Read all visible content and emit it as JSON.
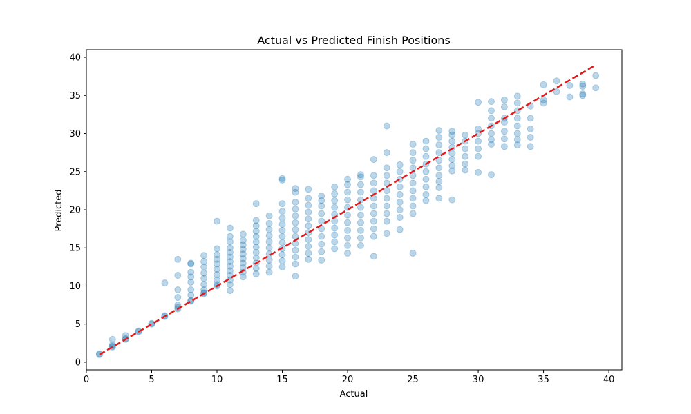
{
  "chart_data": {
    "type": "scatter",
    "title": "Actual vs Predicted Finish Positions",
    "xlabel": "Actual",
    "ylabel": "Predicted",
    "xlim": [
      0.0,
      41.0
    ],
    "ylim": [
      -1.0,
      41.0
    ],
    "x_ticks": [
      0,
      5,
      10,
      15,
      20,
      25,
      30,
      35,
      40
    ],
    "y_ticks": [
      0,
      5,
      10,
      15,
      20,
      25,
      30,
      35,
      40
    ],
    "grid": false,
    "legend": "none",
    "colors": {
      "points": "#1f77b4",
      "point_alpha": 0.3,
      "reference_line": "#e31a1c",
      "axes": "#000000"
    },
    "series": [
      {
        "kind": "points",
        "points": [
          [
            1,
            1.0
          ],
          [
            1,
            1.1
          ],
          [
            2,
            2.0
          ],
          [
            2,
            2.1
          ],
          [
            2,
            2.3
          ],
          [
            2,
            3.0
          ],
          [
            3,
            3.0
          ],
          [
            3,
            3.1
          ],
          [
            3,
            3.5
          ],
          [
            4,
            4.0
          ],
          [
            4,
            4.1
          ],
          [
            5,
            5.0
          ],
          [
            5,
            5.1
          ],
          [
            6,
            6.0
          ],
          [
            6,
            6.1
          ],
          [
            6,
            10.4
          ],
          [
            7,
            7.0
          ],
          [
            7,
            7.2
          ],
          [
            7,
            7.5
          ],
          [
            7,
            8.5
          ],
          [
            7,
            9.5
          ],
          [
            7,
            11.4
          ],
          [
            7,
            13.5
          ],
          [
            8,
            8.0
          ],
          [
            8,
            8.1
          ],
          [
            8,
            8.8
          ],
          [
            8,
            9.5
          ],
          [
            8,
            10.5
          ],
          [
            8,
            11.2
          ],
          [
            8,
            11.8
          ],
          [
            8,
            12.9
          ],
          [
            8,
            13.0
          ],
          [
            9,
            9.0
          ],
          [
            9,
            9.1
          ],
          [
            9,
            9.5
          ],
          [
            9,
            10.2
          ],
          [
            9,
            11.0
          ],
          [
            9,
            11.7
          ],
          [
            9,
            12.5
          ],
          [
            9,
            13.2
          ],
          [
            9,
            14.0
          ],
          [
            10,
            10.0
          ],
          [
            10,
            10.2
          ],
          [
            10,
            10.8
          ],
          [
            10,
            11.5
          ],
          [
            10,
            12.2
          ],
          [
            10,
            12.9
          ],
          [
            10,
            13.5
          ],
          [
            10,
            14.1
          ],
          [
            10,
            14.9
          ],
          [
            10,
            18.5
          ],
          [
            11,
            9.4
          ],
          [
            11,
            10.2
          ],
          [
            11,
            10.8
          ],
          [
            11,
            11.4
          ],
          [
            11,
            12.0
          ],
          [
            11,
            12.6
          ],
          [
            11,
            13.2
          ],
          [
            11,
            13.8
          ],
          [
            11,
            14.4
          ],
          [
            11,
            15.0
          ],
          [
            11,
            15.8
          ],
          [
            11,
            16.5
          ],
          [
            11,
            17.6
          ],
          [
            12,
            11.2
          ],
          [
            12,
            11.8
          ],
          [
            12,
            12.4
          ],
          [
            12,
            13.0
          ],
          [
            12,
            13.6
          ],
          [
            12,
            14.2
          ],
          [
            12,
            14.8
          ],
          [
            12,
            15.4
          ],
          [
            12,
            16.0
          ],
          [
            12,
            16.8
          ],
          [
            13,
            11.6
          ],
          [
            13,
            12.3
          ],
          [
            13,
            13.0
          ],
          [
            13,
            13.7
          ],
          [
            13,
            14.4
          ],
          [
            13,
            15.1
          ],
          [
            13,
            15.8
          ],
          [
            13,
            16.5
          ],
          [
            13,
            17.2
          ],
          [
            13,
            17.9
          ],
          [
            13,
            18.6
          ],
          [
            13,
            20.8
          ],
          [
            14,
            11.8
          ],
          [
            14,
            12.6
          ],
          [
            14,
            13.4
          ],
          [
            14,
            14.2
          ],
          [
            14,
            15.0
          ],
          [
            14,
            15.8
          ],
          [
            14,
            16.6
          ],
          [
            14,
            17.4
          ],
          [
            14,
            18.2
          ],
          [
            14,
            19.2
          ],
          [
            15,
            12.5
          ],
          [
            15,
            13.3
          ],
          [
            15,
            14.1
          ],
          [
            15,
            14.9
          ],
          [
            15,
            15.7
          ],
          [
            15,
            16.5
          ],
          [
            15,
            17.3
          ],
          [
            15,
            18.1
          ],
          [
            15,
            18.9
          ],
          [
            15,
            19.8
          ],
          [
            15,
            20.8
          ],
          [
            15,
            23.9
          ],
          [
            15,
            24.1
          ],
          [
            16,
            11.3
          ],
          [
            16,
            12.9
          ],
          [
            16,
            13.8
          ],
          [
            16,
            14.7
          ],
          [
            16,
            15.6
          ],
          [
            16,
            16.5
          ],
          [
            16,
            17.4
          ],
          [
            16,
            18.3
          ],
          [
            16,
            19.2
          ],
          [
            16,
            20.1
          ],
          [
            16,
            21.0
          ],
          [
            16,
            22.3
          ],
          [
            16,
            22.8
          ],
          [
            17,
            13.5
          ],
          [
            17,
            14.3
          ],
          [
            17,
            15.2
          ],
          [
            17,
            16.1
          ],
          [
            17,
            17.0
          ],
          [
            17,
            17.9
          ],
          [
            17,
            18.8
          ],
          [
            17,
            19.7
          ],
          [
            17,
            20.6
          ],
          [
            17,
            21.5
          ],
          [
            17,
            22.7
          ],
          [
            18,
            13.4
          ],
          [
            18,
            14.5
          ],
          [
            18,
            15.5
          ],
          [
            18,
            16.5
          ],
          [
            18,
            17.5
          ],
          [
            18,
            18.5
          ],
          [
            18,
            19.5
          ],
          [
            18,
            20.5
          ],
          [
            18,
            21.2
          ],
          [
            18,
            21.8
          ],
          [
            19,
            14.9
          ],
          [
            19,
            15.8
          ],
          [
            19,
            16.7
          ],
          [
            19,
            17.6
          ],
          [
            19,
            18.5
          ],
          [
            19,
            19.4
          ],
          [
            19,
            20.3
          ],
          [
            19,
            21.2
          ],
          [
            19,
            22.1
          ],
          [
            19,
            23.0
          ],
          [
            20,
            14.3
          ],
          [
            20,
            15.3
          ],
          [
            20,
            16.3
          ],
          [
            20,
            17.3
          ],
          [
            20,
            18.3
          ],
          [
            20,
            19.3
          ],
          [
            20,
            20.3
          ],
          [
            20,
            21.3
          ],
          [
            20,
            22.3
          ],
          [
            20,
            23.3
          ],
          [
            20,
            24.0
          ],
          [
            21,
            15.3
          ],
          [
            21,
            16.3
          ],
          [
            21,
            17.3
          ],
          [
            21,
            18.3
          ],
          [
            21,
            19.3
          ],
          [
            21,
            20.3
          ],
          [
            21,
            21.3
          ],
          [
            21,
            22.3
          ],
          [
            21,
            23.3
          ],
          [
            21,
            24.3
          ],
          [
            21,
            24.6
          ],
          [
            22,
            13.9
          ],
          [
            22,
            16.5
          ],
          [
            22,
            17.5
          ],
          [
            22,
            18.5
          ],
          [
            22,
            19.5
          ],
          [
            22,
            20.5
          ],
          [
            22,
            21.5
          ],
          [
            22,
            22.5
          ],
          [
            22,
            23.5
          ],
          [
            22,
            24.5
          ],
          [
            22,
            26.6
          ],
          [
            23,
            16.9
          ],
          [
            23,
            18.5
          ],
          [
            23,
            19.5
          ],
          [
            23,
            20.5
          ],
          [
            23,
            21.5
          ],
          [
            23,
            22.5
          ],
          [
            23,
            23.5
          ],
          [
            23,
            24.5
          ],
          [
            23,
            25.5
          ],
          [
            23,
            27.5
          ],
          [
            23,
            31.0
          ],
          [
            24,
            17.4
          ],
          [
            24,
            19.0
          ],
          [
            24,
            20.0
          ],
          [
            24,
            21.0
          ],
          [
            24,
            22.0
          ],
          [
            24,
            23.0
          ],
          [
            24,
            24.0
          ],
          [
            24,
            25.0
          ],
          [
            24,
            25.9
          ],
          [
            25,
            14.3
          ],
          [
            25,
            19.5
          ],
          [
            25,
            20.5
          ],
          [
            25,
            21.5
          ],
          [
            25,
            22.5
          ],
          [
            25,
            23.5
          ],
          [
            25,
            24.5
          ],
          [
            25,
            25.5
          ],
          [
            25,
            26.5
          ],
          [
            25,
            27.5
          ],
          [
            25,
            28.6
          ],
          [
            26,
            21.2
          ],
          [
            26,
            22.0
          ],
          [
            26,
            23.0
          ],
          [
            26,
            24.0
          ],
          [
            26,
            25.0
          ],
          [
            26,
            26.0
          ],
          [
            26,
            27.0
          ],
          [
            26,
            28.0
          ],
          [
            26,
            29.0
          ],
          [
            27,
            21.5
          ],
          [
            27,
            22.9
          ],
          [
            27,
            23.7
          ],
          [
            27,
            24.5
          ],
          [
            27,
            25.5
          ],
          [
            27,
            26.5
          ],
          [
            27,
            27.5
          ],
          [
            27,
            28.5
          ],
          [
            27,
            29.5
          ],
          [
            27,
            30.4
          ],
          [
            28,
            21.3
          ],
          [
            28,
            25.1
          ],
          [
            28,
            25.8
          ],
          [
            28,
            26.6
          ],
          [
            28,
            27.4
          ],
          [
            28,
            28.2
          ],
          [
            28,
            29.0
          ],
          [
            28,
            29.8
          ],
          [
            28,
            30.3
          ],
          [
            29,
            25.2
          ],
          [
            29,
            26.0
          ],
          [
            29,
            27.0
          ],
          [
            29,
            28.0
          ],
          [
            29,
            29.0
          ],
          [
            29,
            29.8
          ],
          [
            30,
            24.9
          ],
          [
            30,
            27.0
          ],
          [
            30,
            28.0
          ],
          [
            30,
            29.0
          ],
          [
            30,
            30.0
          ],
          [
            30,
            30.6
          ],
          [
            30,
            34.1
          ],
          [
            31,
            24.6
          ],
          [
            31,
            28.6
          ],
          [
            31,
            29.2
          ],
          [
            31,
            30.0
          ],
          [
            31,
            31.0
          ],
          [
            31,
            32.0
          ],
          [
            31,
            33.0
          ],
          [
            31,
            34.2
          ],
          [
            32,
            28.3
          ],
          [
            32,
            29.3
          ],
          [
            32,
            30.3
          ],
          [
            32,
            31.5
          ],
          [
            32,
            32.0
          ],
          [
            32,
            33.5
          ],
          [
            32,
            34.4
          ],
          [
            33,
            28.5
          ],
          [
            33,
            29.2
          ],
          [
            33,
            30.0
          ],
          [
            33,
            31.0
          ],
          [
            33,
            32.0
          ],
          [
            33,
            33.0
          ],
          [
            33,
            34.0
          ],
          [
            33,
            34.9
          ],
          [
            34,
            28.3
          ],
          [
            34,
            29.5
          ],
          [
            34,
            30.6
          ],
          [
            34,
            32.0
          ],
          [
            34,
            33.6
          ],
          [
            35,
            34.0
          ],
          [
            35,
            34.4
          ],
          [
            35,
            36.4
          ],
          [
            36,
            35.5
          ],
          [
            36,
            36.9
          ],
          [
            37,
            34.8
          ],
          [
            37,
            36.3
          ],
          [
            38,
            35.0
          ],
          [
            38,
            35.2
          ],
          [
            38,
            36.2
          ],
          [
            38,
            36.5
          ],
          [
            39,
            36.0
          ],
          [
            39,
            37.6
          ]
        ]
      },
      {
        "kind": "reference-line",
        "style": "dashed",
        "x": [
          1,
          39
        ],
        "y": [
          1,
          39
        ]
      }
    ]
  }
}
